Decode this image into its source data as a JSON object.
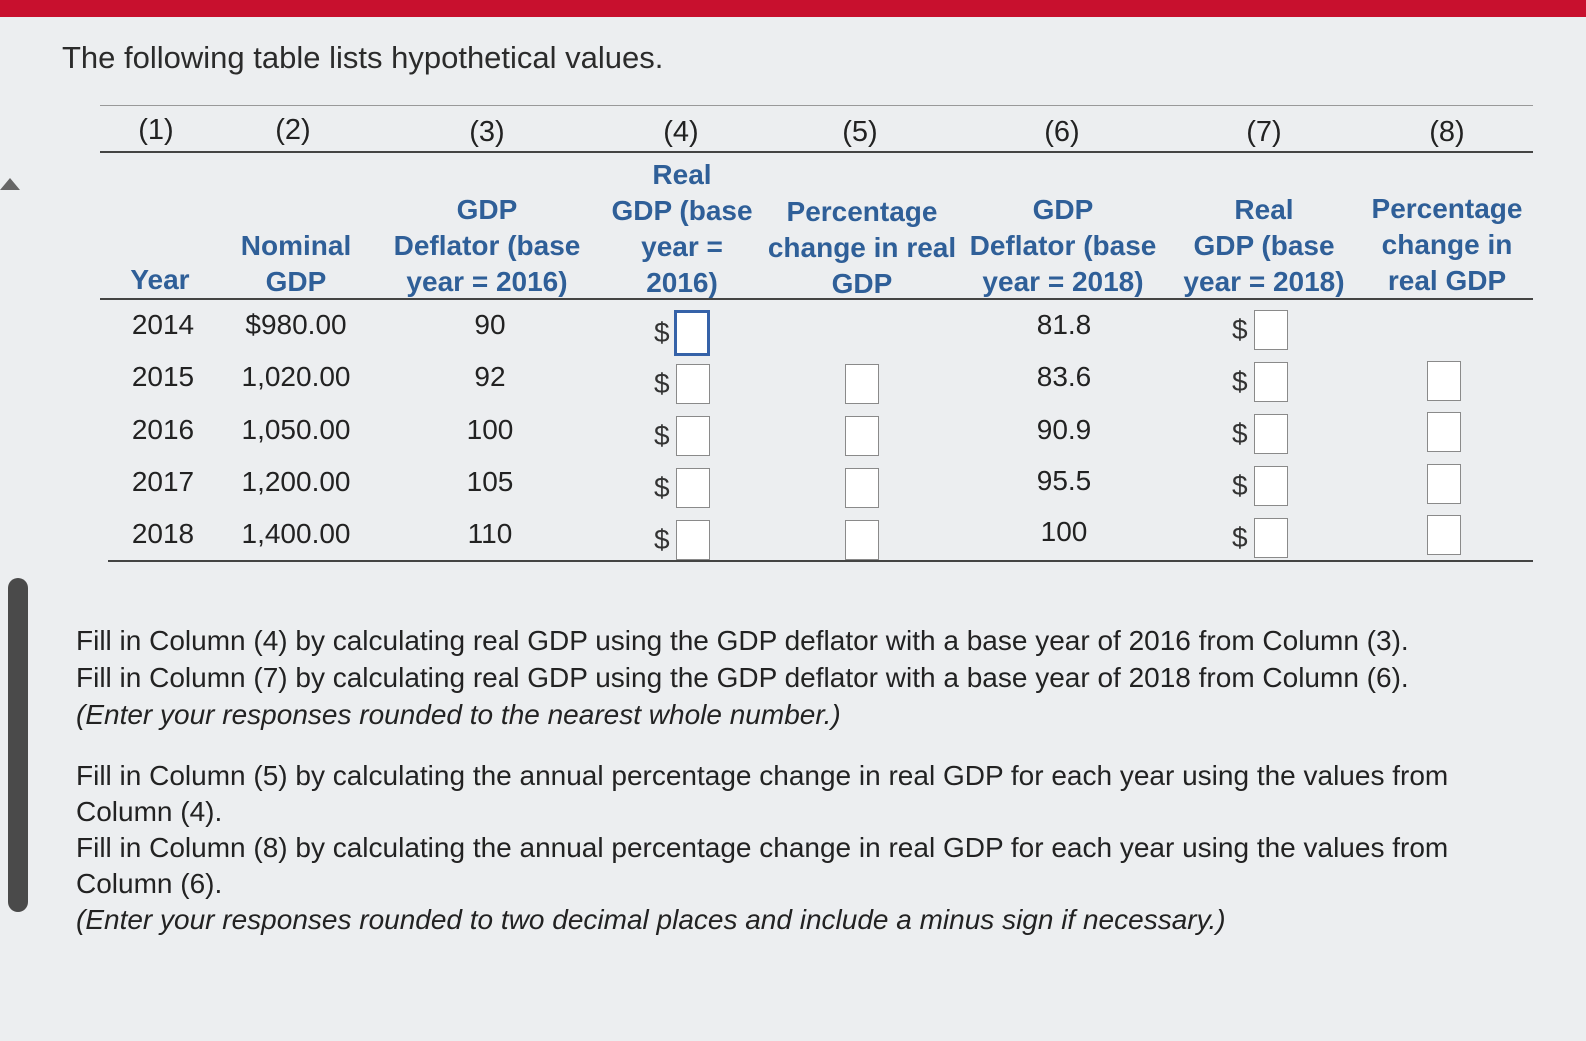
{
  "intro": "The following table lists hypothetical values.",
  "column_numbers": [
    "(1)",
    "(2)",
    "(3)",
    "(4)",
    "(5)",
    "(6)",
    "(7)",
    "(8)"
  ],
  "headers": {
    "c1": [
      "Year"
    ],
    "c2": [
      "Nominal",
      "GDP"
    ],
    "c3": [
      "GDP",
      "Deflator (base",
      "year = 2016)"
    ],
    "c4": [
      "Real",
      "GDP (base",
      "year =",
      "2016)"
    ],
    "c5": [
      "Percentage",
      "change in real",
      "GDP"
    ],
    "c6": [
      "GDP",
      "Deflator (base",
      "year = 2018)"
    ],
    "c7": [
      "Real",
      "GDP (base",
      "year = 2018)"
    ],
    "c8": [
      "Percentage",
      "change in",
      "real GDP"
    ]
  },
  "currency_symbol": "$",
  "rows": [
    {
      "year": "2014",
      "nominal": "$980.00",
      "deflator_2016": "90",
      "deflator_2018": "81.8"
    },
    {
      "year": "2015",
      "nominal": "1,020.00",
      "deflator_2016": "92",
      "deflator_2018": "83.6"
    },
    {
      "year": "2016",
      "nominal": "1,050.00",
      "deflator_2016": "100",
      "deflator_2018": "90.9"
    },
    {
      "year": "2017",
      "nominal": "1,200.00",
      "deflator_2016": "105",
      "deflator_2018": "95.5"
    },
    {
      "year": "2018",
      "nominal": "1,400.00",
      "deflator_2016": "110",
      "deflator_2018": "100"
    }
  ],
  "instructions": {
    "p1": [
      "Fill in Column (4) by calculating real GDP using the GDP deflator with a base year of 2016 from Column (3).",
      "Fill in Column (7) by calculating real GDP using the GDP deflator with a base year of 2018 from Column (6).",
      "(Enter your responses rounded to the nearest whole number.)"
    ],
    "p2": [
      "Fill in Column (5) by calculating the annual percentage change in real GDP for each year using the values from",
      "Column (4).",
      "Fill in Column (8) by calculating the annual percentage change in real GDP for each year using the values from",
      "Column (6).",
      "(Enter your responses rounded to two decimal places and include a minus sign if necessary.)"
    ]
  },
  "colors": {
    "accent": "#c8102e",
    "header_text": "#2f5f98",
    "active_input": "#3562a8"
  },
  "icons": {
    "left_arrow": "left-arrow-icon"
  }
}
